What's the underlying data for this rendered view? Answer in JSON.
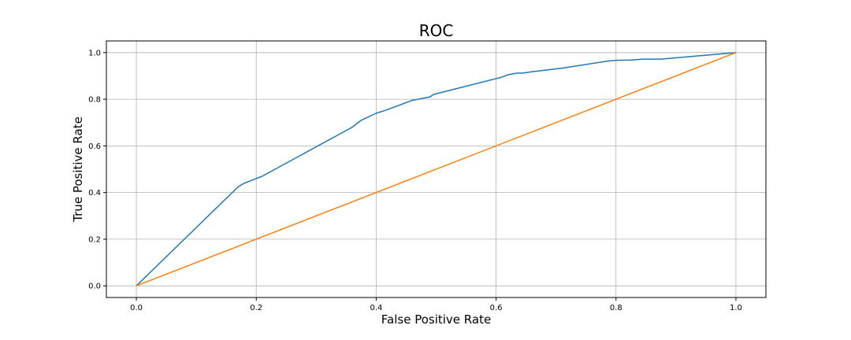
{
  "chart_data": {
    "type": "line",
    "title": "ROC",
    "xlabel": "False Positive Rate",
    "ylabel": "True Positive Rate",
    "xlim": [
      -0.05,
      1.05
    ],
    "ylim": [
      -0.05,
      1.05
    ],
    "xticks": [
      0.0,
      0.2,
      0.4,
      0.6,
      0.8,
      1.0
    ],
    "xtick_labels": [
      "0.0",
      "0.2",
      "0.4",
      "0.6",
      "0.8",
      "1.0"
    ],
    "yticks": [
      0.0,
      0.2,
      0.4,
      0.6,
      0.8,
      1.0
    ],
    "ytick_labels": [
      "0.0",
      "0.2",
      "0.4",
      "0.6",
      "0.8",
      "1.0"
    ],
    "grid": true,
    "series": [
      {
        "name": "roc-curve",
        "color": "#1f77b4",
        "x": [
          0.0,
          0.17,
          0.18,
          0.195,
          0.205,
          0.21,
          0.36,
          0.375,
          0.4,
          0.415,
          0.46,
          0.49,
          0.495,
          0.61,
          0.62,
          0.635,
          0.645,
          0.66,
          0.71,
          0.785,
          0.8,
          0.825,
          0.845,
          0.875,
          1.0
        ],
        "y": [
          0.0,
          0.425,
          0.44,
          0.455,
          0.465,
          0.47,
          0.68,
          0.71,
          0.74,
          0.752,
          0.795,
          0.81,
          0.82,
          0.895,
          0.905,
          0.912,
          0.912,
          0.918,
          0.933,
          0.963,
          0.967,
          0.968,
          0.972,
          0.972,
          1.0
        ]
      },
      {
        "name": "diagonal",
        "color": "#ff7f0e",
        "x": [
          0.0,
          1.0
        ],
        "y": [
          0.0,
          1.0
        ]
      }
    ]
  }
}
